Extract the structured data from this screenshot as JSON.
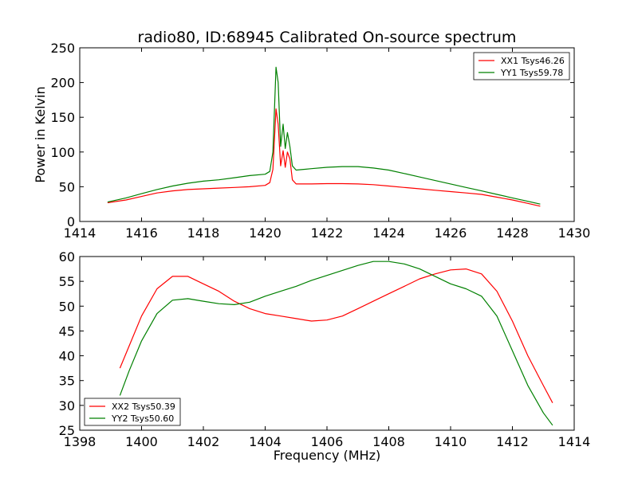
{
  "chart_data": [
    {
      "type": "line",
      "title": "radio80, ID:68945 Calibrated On-source spectrum",
      "xlabel": "",
      "ylabel": "Power in Kelvin",
      "xlim": [
        1414,
        1430
      ],
      "ylim": [
        0,
        250
      ],
      "xticks": [
        1414,
        1416,
        1418,
        1420,
        1422,
        1424,
        1426,
        1428,
        1430
      ],
      "yticks": [
        0,
        50,
        100,
        150,
        200,
        250
      ],
      "legend_position": "top-right",
      "series": [
        {
          "name": "XX1 Tsys46.26",
          "color": "#ff0000",
          "x": [
            1414.9,
            1415.5,
            1416.0,
            1416.5,
            1417.0,
            1417.5,
            1418.0,
            1418.5,
            1419.0,
            1419.5,
            1420.0,
            1420.15,
            1420.25,
            1420.35,
            1420.42,
            1420.5,
            1420.58,
            1420.65,
            1420.72,
            1420.8,
            1420.88,
            1421.0,
            1421.5,
            1422.0,
            1422.5,
            1423.0,
            1423.5,
            1424.0,
            1424.5,
            1425.0,
            1425.5,
            1426.0,
            1426.5,
            1427.0,
            1427.5,
            1428.0,
            1428.5,
            1428.9
          ],
          "y": [
            27,
            31,
            36,
            41,
            44,
            46,
            47,
            48,
            49,
            50,
            52,
            56,
            75,
            162,
            140,
            80,
            102,
            78,
            100,
            90,
            60,
            54,
            54,
            54.5,
            54.5,
            54,
            53,
            51,
            49,
            47,
            45,
            43,
            41,
            39,
            35,
            31,
            26,
            22
          ]
        },
        {
          "name": "YY1 Tsys59.78",
          "color": "#008000",
          "x": [
            1414.9,
            1415.5,
            1416.0,
            1416.5,
            1417.0,
            1417.5,
            1418.0,
            1418.5,
            1419.0,
            1419.5,
            1420.0,
            1420.15,
            1420.25,
            1420.35,
            1420.42,
            1420.5,
            1420.58,
            1420.65,
            1420.72,
            1420.8,
            1420.88,
            1421.0,
            1421.5,
            1422.0,
            1422.5,
            1423.0,
            1423.5,
            1424.0,
            1424.5,
            1425.0,
            1425.5,
            1426.0,
            1426.5,
            1427.0,
            1427.5,
            1428.0,
            1428.5,
            1428.9
          ],
          "y": [
            28,
            34,
            40,
            46,
            51,
            55,
            58,
            60,
            63,
            66,
            68,
            72,
            100,
            222,
            200,
            108,
            140,
            105,
            128,
            108,
            80,
            74,
            76,
            78,
            79,
            79,
            77,
            74,
            69,
            64,
            59,
            54,
            49,
            44,
            39,
            34,
            29,
            25
          ]
        }
      ]
    },
    {
      "type": "line",
      "title": "",
      "xlabel": "Frequency (MHz)",
      "ylabel": "",
      "xlim": [
        1398,
        1414
      ],
      "ylim": [
        25,
        60
      ],
      "xticks": [
        1398,
        1400,
        1402,
        1404,
        1406,
        1408,
        1410,
        1412,
        1414
      ],
      "yticks": [
        25,
        30,
        35,
        40,
        45,
        50,
        55,
        60
      ],
      "legend_position": "bottom-left",
      "series": [
        {
          "name": "XX2 Tsys50.39",
          "color": "#ff0000",
          "x": [
            1399.3,
            1399.6,
            1400.0,
            1400.5,
            1401.0,
            1401.5,
            1402.0,
            1402.5,
            1403.0,
            1403.5,
            1404.0,
            1404.5,
            1405.0,
            1405.5,
            1406.0,
            1406.5,
            1407.0,
            1407.5,
            1408.0,
            1408.5,
            1409.0,
            1409.5,
            1410.0,
            1410.5,
            1411.0,
            1411.5,
            1412.0,
            1412.5,
            1413.0,
            1413.3
          ],
          "y": [
            37.5,
            42,
            48,
            53.5,
            56,
            56,
            54.5,
            53,
            51,
            49.5,
            48.5,
            48,
            47.5,
            47,
            47.2,
            48,
            49.5,
            51,
            52.5,
            54,
            55.5,
            56.5,
            57.3,
            57.5,
            56.5,
            53,
            47,
            40,
            34,
            30.5
          ]
        },
        {
          "name": "YY2 Tsys50.60",
          "color": "#008000",
          "x": [
            1399.3,
            1399.6,
            1400.0,
            1400.5,
            1401.0,
            1401.5,
            1402.0,
            1402.5,
            1403.0,
            1403.5,
            1404.0,
            1404.5,
            1405.0,
            1405.5,
            1406.0,
            1406.5,
            1407.0,
            1407.5,
            1408.0,
            1408.5,
            1409.0,
            1409.5,
            1410.0,
            1410.5,
            1411.0,
            1411.5,
            1412.0,
            1412.5,
            1413.0,
            1413.3
          ],
          "y": [
            32,
            37,
            43,
            48.5,
            51.2,
            51.5,
            51,
            50.5,
            50.3,
            50.8,
            52,
            53,
            54,
            55.2,
            56.2,
            57.2,
            58.2,
            59,
            59,
            58.5,
            57.5,
            56,
            54.5,
            53.5,
            52,
            48,
            41,
            34,
            28.5,
            26
          ]
        }
      ]
    }
  ]
}
